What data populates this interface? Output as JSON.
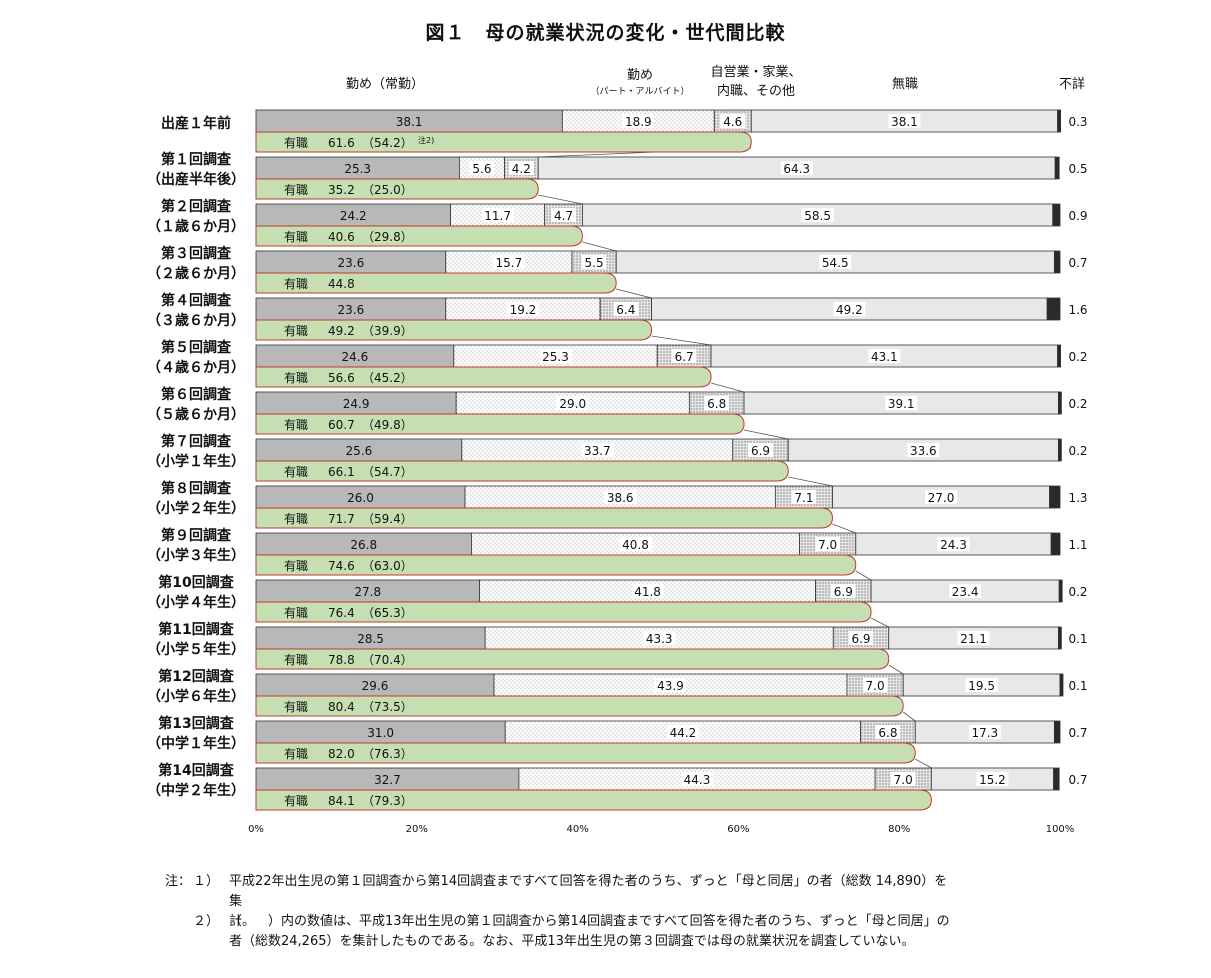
{
  "title": "図１　母の就業状況の変化・世代間比較",
  "chart_data": {
    "type": "bar",
    "stacked": true,
    "orientation": "horizontal",
    "xlim": [
      0,
      100
    ],
    "x_ticks": [
      "0%",
      "20%",
      "40%",
      "60%",
      "80%",
      "100%"
    ],
    "series_headers": [
      {
        "lines": [
          "勤め（常勤）"
        ]
      },
      {
        "lines": [
          "勤め",
          "（パート・アルバイト）"
        ]
      },
      {
        "lines": [
          "自営業・家業、",
          "内職、その他"
        ]
      },
      {
        "lines": [
          "無職"
        ]
      },
      {
        "lines": [
          "不詳"
        ]
      }
    ],
    "series_colors": [
      "#b8b8b8",
      "#f4f4f4",
      "#e6e6e6",
      "#e8e8e8",
      "#2a2a2a"
    ],
    "employed_label": "有職",
    "employed_bar_color": "#c5dfb3",
    "employed_bar_border": "#c0392b",
    "categories": [
      {
        "label": [
          "出産１年前"
        ],
        "values": [
          38.1,
          18.9,
          4.6,
          38.1,
          0.3
        ],
        "unknown": "0.3",
        "employed": "61.6",
        "employed_prev": "（54.2）",
        "note": "注2)"
      },
      {
        "label": [
          "第１回調査",
          "（出産半年後）"
        ],
        "values": [
          25.3,
          5.6,
          4.2,
          64.3,
          0.5
        ],
        "unknown": "0.5",
        "employed": "35.2",
        "employed_prev": "（25.0）"
      },
      {
        "label": [
          "第２回調査",
          "（１歳６か月）"
        ],
        "values": [
          24.2,
          11.7,
          4.7,
          58.5,
          0.9
        ],
        "unknown": "0.9",
        "employed": "40.6",
        "employed_prev": "（29.8）"
      },
      {
        "label": [
          "第３回調査",
          "（２歳６か月）"
        ],
        "values": [
          23.6,
          15.7,
          5.5,
          54.5,
          0.7
        ],
        "unknown": "0.7",
        "employed": "44.8",
        "employed_prev": ""
      },
      {
        "label": [
          "第４回調査",
          "（３歳６か月）"
        ],
        "values": [
          23.6,
          19.2,
          6.4,
          49.2,
          1.6
        ],
        "unknown": "1.6",
        "employed": "49.2",
        "employed_prev": "（39.9）"
      },
      {
        "label": [
          "第５回調査",
          "（４歳６か月）"
        ],
        "values": [
          24.6,
          25.3,
          6.7,
          43.1,
          0.2
        ],
        "unknown": "0.2",
        "employed": "56.6",
        "employed_prev": "（45.2）"
      },
      {
        "label": [
          "第６回調査",
          "（５歳６か月）"
        ],
        "values": [
          24.9,
          29.0,
          6.8,
          39.1,
          0.2
        ],
        "unknown": "0.2",
        "employed": "60.7",
        "employed_prev": "（49.8）"
      },
      {
        "label": [
          "第７回調査",
          "（小学１年生）"
        ],
        "values": [
          25.6,
          33.7,
          6.9,
          33.6,
          0.2
        ],
        "unknown": "0.2",
        "employed": "66.1",
        "employed_prev": "（54.7）"
      },
      {
        "label": [
          "第８回調査",
          "（小学２年生）"
        ],
        "values": [
          26.0,
          38.6,
          7.1,
          27.0,
          1.3
        ],
        "unknown": "1.3",
        "employed": "71.7",
        "employed_prev": "（59.4）"
      },
      {
        "label": [
          "第９回調査",
          "（小学３年生）"
        ],
        "values": [
          26.8,
          40.8,
          7.0,
          24.3,
          1.1
        ],
        "unknown": "1.1",
        "employed": "74.6",
        "employed_prev": "（63.0）"
      },
      {
        "label": [
          "第10回調査",
          "（小学４年生）"
        ],
        "values": [
          27.8,
          41.8,
          6.9,
          23.4,
          0.2
        ],
        "unknown": "0.2",
        "employed": "76.4",
        "employed_prev": "（65.3）"
      },
      {
        "label": [
          "第11回調査",
          "（小学５年生）"
        ],
        "values": [
          28.5,
          43.3,
          6.9,
          21.1,
          0.1
        ],
        "unknown": "0.1",
        "employed": "78.8",
        "employed_prev": "（70.4）"
      },
      {
        "label": [
          "第12回調査",
          "（小学６年生）"
        ],
        "values": [
          29.6,
          43.9,
          7.0,
          19.5,
          0.1
        ],
        "unknown": "0.1",
        "employed": "80.4",
        "employed_prev": "（73.5）"
      },
      {
        "label": [
          "第13回調査",
          "（中学１年生）"
        ],
        "values": [
          31.0,
          44.2,
          6.8,
          17.3,
          0.7
        ],
        "unknown": "0.7",
        "employed": "82.0",
        "employed_prev": "（76.3）"
      },
      {
        "label": [
          "第14回調査",
          "（中学２年生）"
        ],
        "values": [
          32.7,
          44.3,
          7.0,
          15.2,
          0.7
        ],
        "unknown": "0.7",
        "employed": "84.1",
        "employed_prev": "（79.3）"
      }
    ]
  },
  "notes": {
    "prefix": "注：",
    "n1_num": "１）",
    "n1_line1": "平成22年出生児の第１回調査から第14回調査まですべて回答を得た者のうち、ずっと「母と同居」の者（総数 14,890）を",
    "n1_line2": "集計。",
    "n2_num": "２）",
    "n2_line1": "（　　）内の数値は、平成13年出生児の第１回調査から第14回調査まですべて回答を得た者のうち、ずっと「母と同居」の",
    "n2_line2": "者（総数24,265）を集計したものである。なお、平成13年出生児の第３回調査では母の就業状況を調査していない。"
  }
}
